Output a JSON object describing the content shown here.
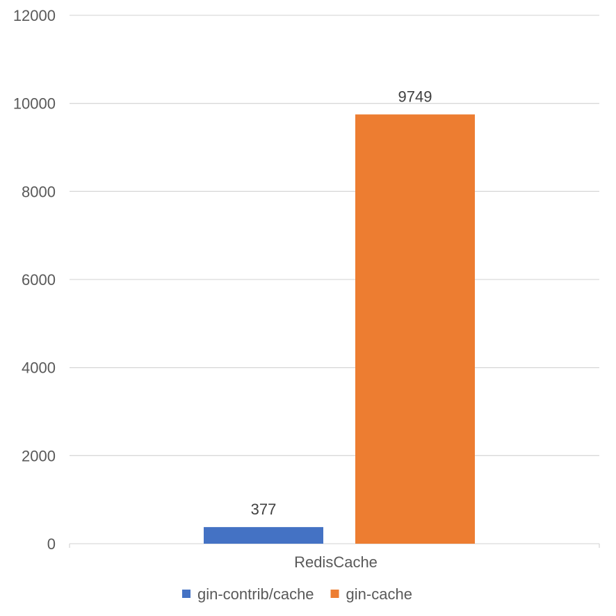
{
  "chart_data": {
    "type": "bar",
    "title": "",
    "xlabel": "",
    "ylabel": "",
    "categories": [
      "RedisCache"
    ],
    "series": [
      {
        "name": "gin-contrib/cache",
        "values": [
          377
        ],
        "color": "#4472C4"
      },
      {
        "name": "gin-cache",
        "values": [
          9749
        ],
        "color": "#ED7D31"
      }
    ],
    "ylim": [
      0,
      12000
    ],
    "yticks": [
      0,
      2000,
      4000,
      6000,
      8000,
      10000,
      12000
    ],
    "grid": true,
    "legend": "bottom",
    "data_labels": true
  }
}
